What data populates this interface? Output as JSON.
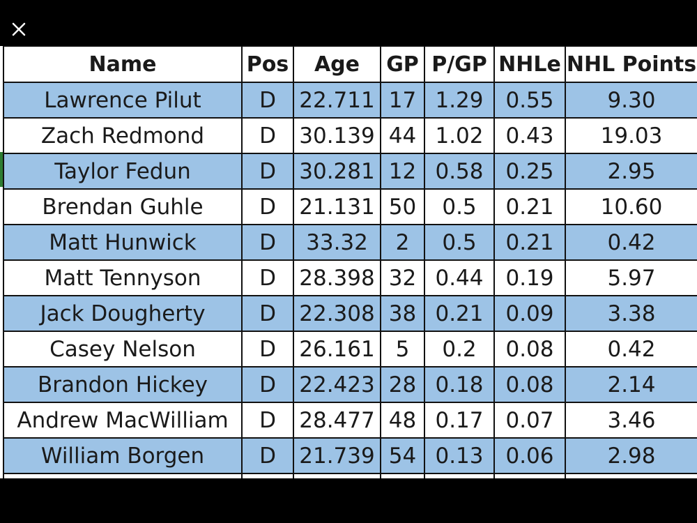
{
  "viewer": {
    "close_icon": "close-icon"
  },
  "table": {
    "headers": [
      "Name",
      "Pos",
      "Age",
      "GP",
      "P/GP",
      "NHLe",
      "NHL Points"
    ],
    "rows": [
      [
        "Lawrence Pilut",
        "D",
        "22.711",
        "17",
        "1.29",
        "0.55",
        "9.30"
      ],
      [
        "Zach Redmond",
        "D",
        "30.139",
        "44",
        "1.02",
        "0.43",
        "19.03"
      ],
      [
        "Taylor Fedun",
        "D",
        "30.281",
        "12",
        "0.58",
        "0.25",
        "2.95"
      ],
      [
        "Brendan Guhle",
        "D",
        "21.131",
        "50",
        "0.5",
        "0.21",
        "10.60"
      ],
      [
        "Matt Hunwick",
        "D",
        "33.32",
        "2",
        "0.5",
        "0.21",
        "0.42"
      ],
      [
        "Matt Tennyson",
        "D",
        "28.398",
        "32",
        "0.44",
        "0.19",
        "5.97"
      ],
      [
        "Jack Dougherty",
        "D",
        "22.308",
        "38",
        "0.21",
        "0.09",
        "3.38"
      ],
      [
        "Casey Nelson",
        "D",
        "26.161",
        "5",
        "0.2",
        "0.08",
        "0.42"
      ],
      [
        "Brandon Hickey",
        "D",
        "22.423",
        "28",
        "0.18",
        "0.08",
        "2.14"
      ],
      [
        "Andrew MacWilliam",
        "D",
        "28.477",
        "48",
        "0.17",
        "0.07",
        "3.46"
      ],
      [
        "William Borgen",
        "D",
        "21.739",
        "54",
        "0.13",
        "0.06",
        "2.98"
      ]
    ],
    "colors": {
      "shaded_row": "#9dc3e6",
      "plain_row": "#ffffff",
      "border": "#111111"
    }
  }
}
